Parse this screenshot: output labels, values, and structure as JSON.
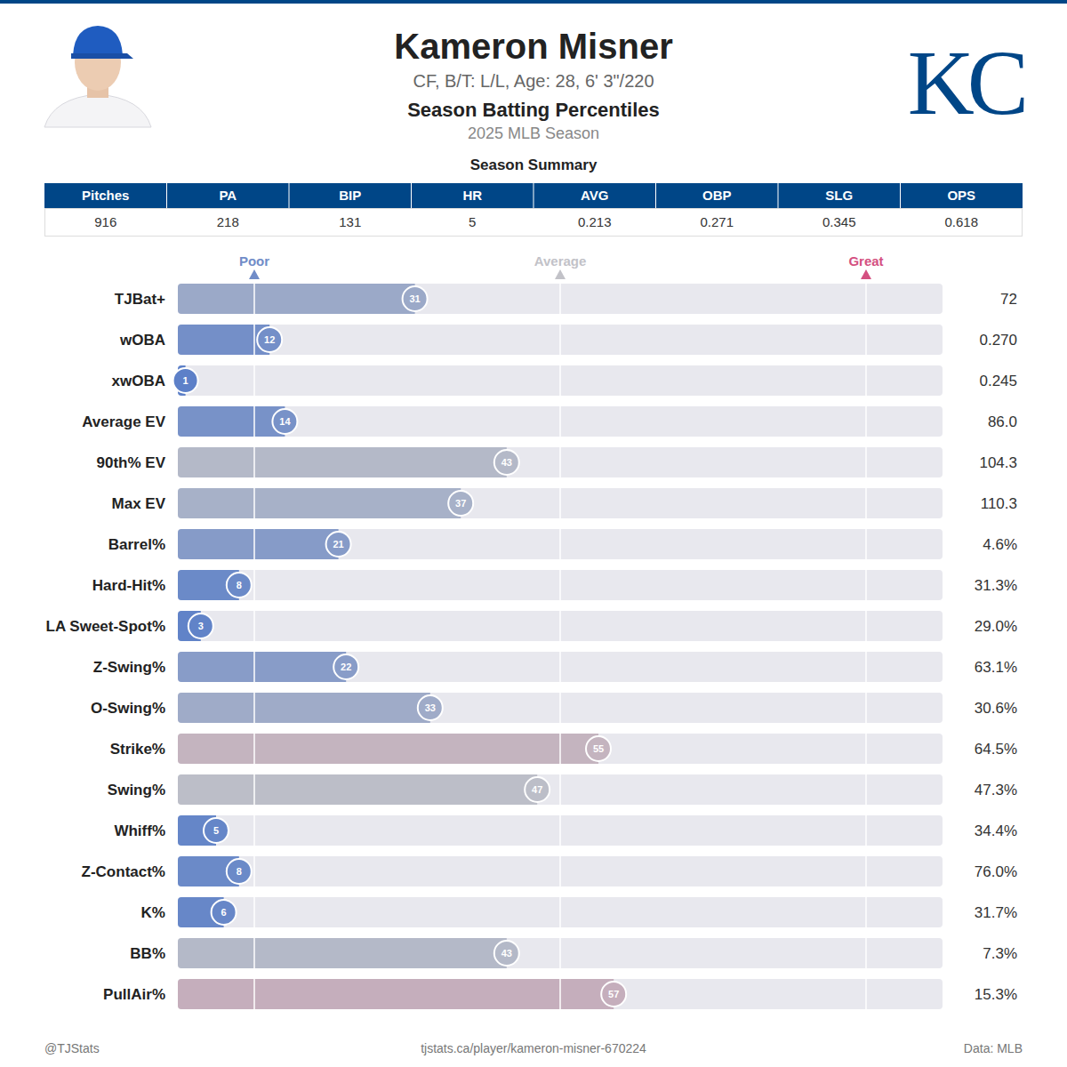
{
  "header": {
    "name": "Kameron Misner",
    "subtitle": "CF, B/T: L/L, Age: 28, 6' 3\"/220",
    "title": "Season Batting Percentiles",
    "season": "2025 MLB Season",
    "logo": "KC"
  },
  "summary": {
    "title": "Season Summary",
    "columns": [
      "Pitches",
      "PA",
      "BIP",
      "HR",
      "AVG",
      "OBP",
      "SLG",
      "OPS"
    ],
    "values": [
      916,
      218,
      131,
      5,
      0.213,
      0.271,
      0.345,
      0.618
    ]
  },
  "chart_data": {
    "type": "bar",
    "orientation": "horizontal",
    "categories": [
      "TJBat+",
      "wOBA",
      "xwOBA",
      "Average EV",
      "90th% EV",
      "Max EV",
      "Barrel%",
      "Hard-Hit%",
      "LA Sweet-Spot%",
      "Z-Swing%",
      "O-Swing%",
      "Strike%",
      "Swing%",
      "Whiff%",
      "Z-Contact%",
      "K%",
      "BB%",
      "PullAir%"
    ],
    "values": [
      31,
      12,
      1,
      14,
      43,
      37,
      21,
      8,
      3,
      22,
      33,
      55,
      47,
      5,
      8,
      6,
      43,
      57
    ],
    "stat_labels": [
      "72",
      "0.270",
      "0.245",
      "86.0",
      "104.3",
      "110.3",
      "4.6%",
      "31.3%",
      "29.0%",
      "63.1%",
      "30.6%",
      "64.5%",
      "47.3%",
      "34.4%",
      "76.0%",
      "31.7%",
      "7.3%",
      "15.3%"
    ],
    "xlim": [
      0,
      100
    ],
    "xticks": [
      {
        "value": 10,
        "label": "Poor"
      },
      {
        "value": 50,
        "label": "Average"
      },
      {
        "value": 90,
        "label": "Great"
      }
    ],
    "grid": true,
    "data_labels": true
  },
  "footer": {
    "left": "@TJStats",
    "center": "tjstats.ca/player/kameron-misner-670224",
    "right": "Data: MLB"
  }
}
